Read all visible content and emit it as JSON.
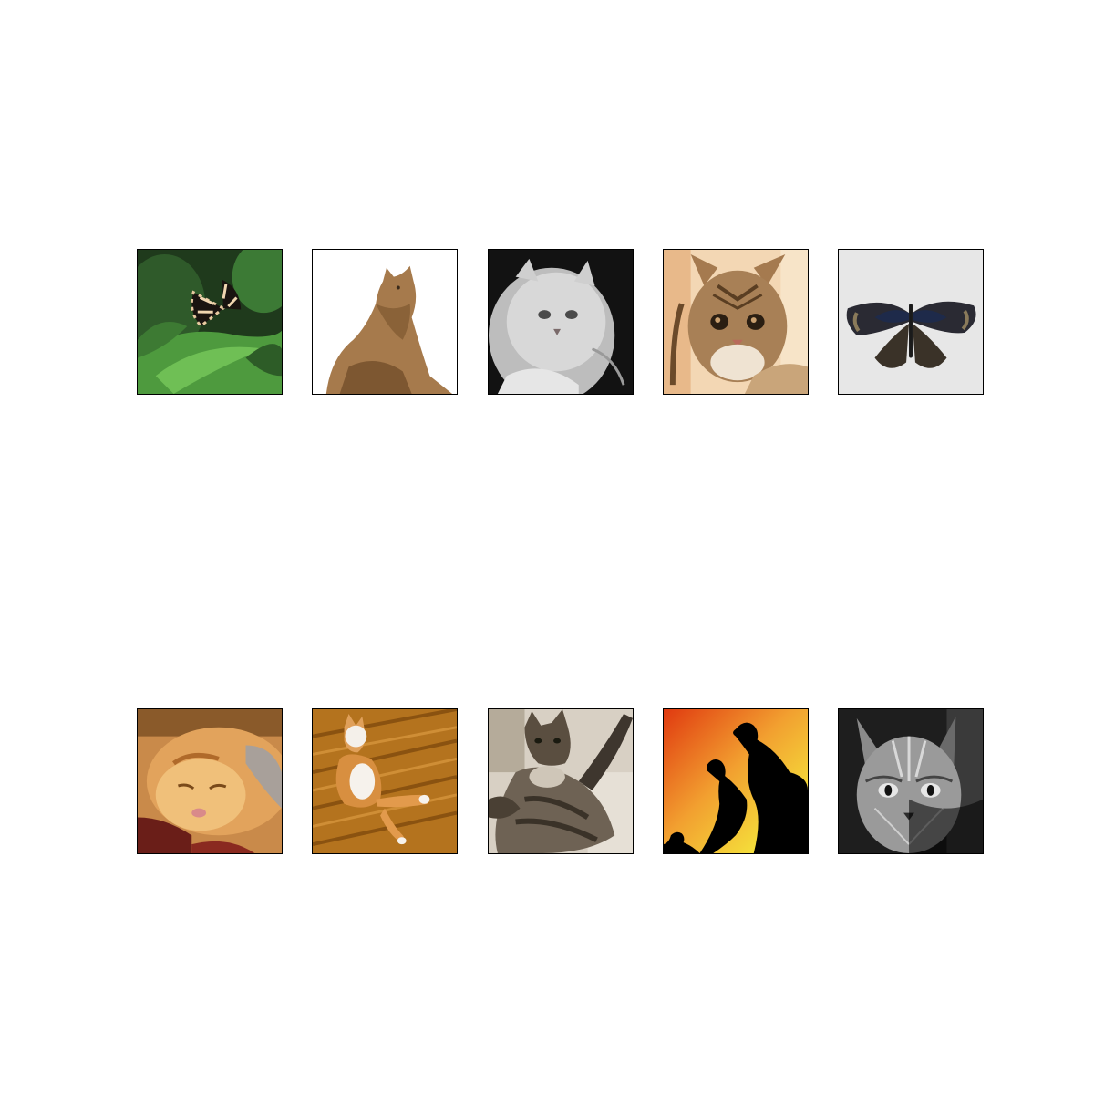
{
  "figure": {
    "rows": 2,
    "columns": 5,
    "tiles": [
      {
        "subject": "butterfly",
        "icon": "butterfly-on-leaves-icon"
      },
      {
        "subject": "cat",
        "icon": "sitting-cat-icon"
      },
      {
        "subject": "cat",
        "icon": "white-persian-cat-icon"
      },
      {
        "subject": "cat",
        "icon": "tabby-cat-face-icon"
      },
      {
        "subject": "butterfly",
        "icon": "dark-butterfly-icon"
      },
      {
        "subject": "cat",
        "icon": "sleeping-cat-icon"
      },
      {
        "subject": "cat",
        "icon": "cat-on-floor-icon"
      },
      {
        "subject": "cat",
        "icon": "fluffy-cat-icon"
      },
      {
        "subject": "birds",
        "icon": "bird-silhouettes-icon"
      },
      {
        "subject": "cat",
        "icon": "grayscale-cat-face-icon"
      }
    ]
  },
  "colors": {
    "background": "#ffffff",
    "frame": "#000000"
  }
}
